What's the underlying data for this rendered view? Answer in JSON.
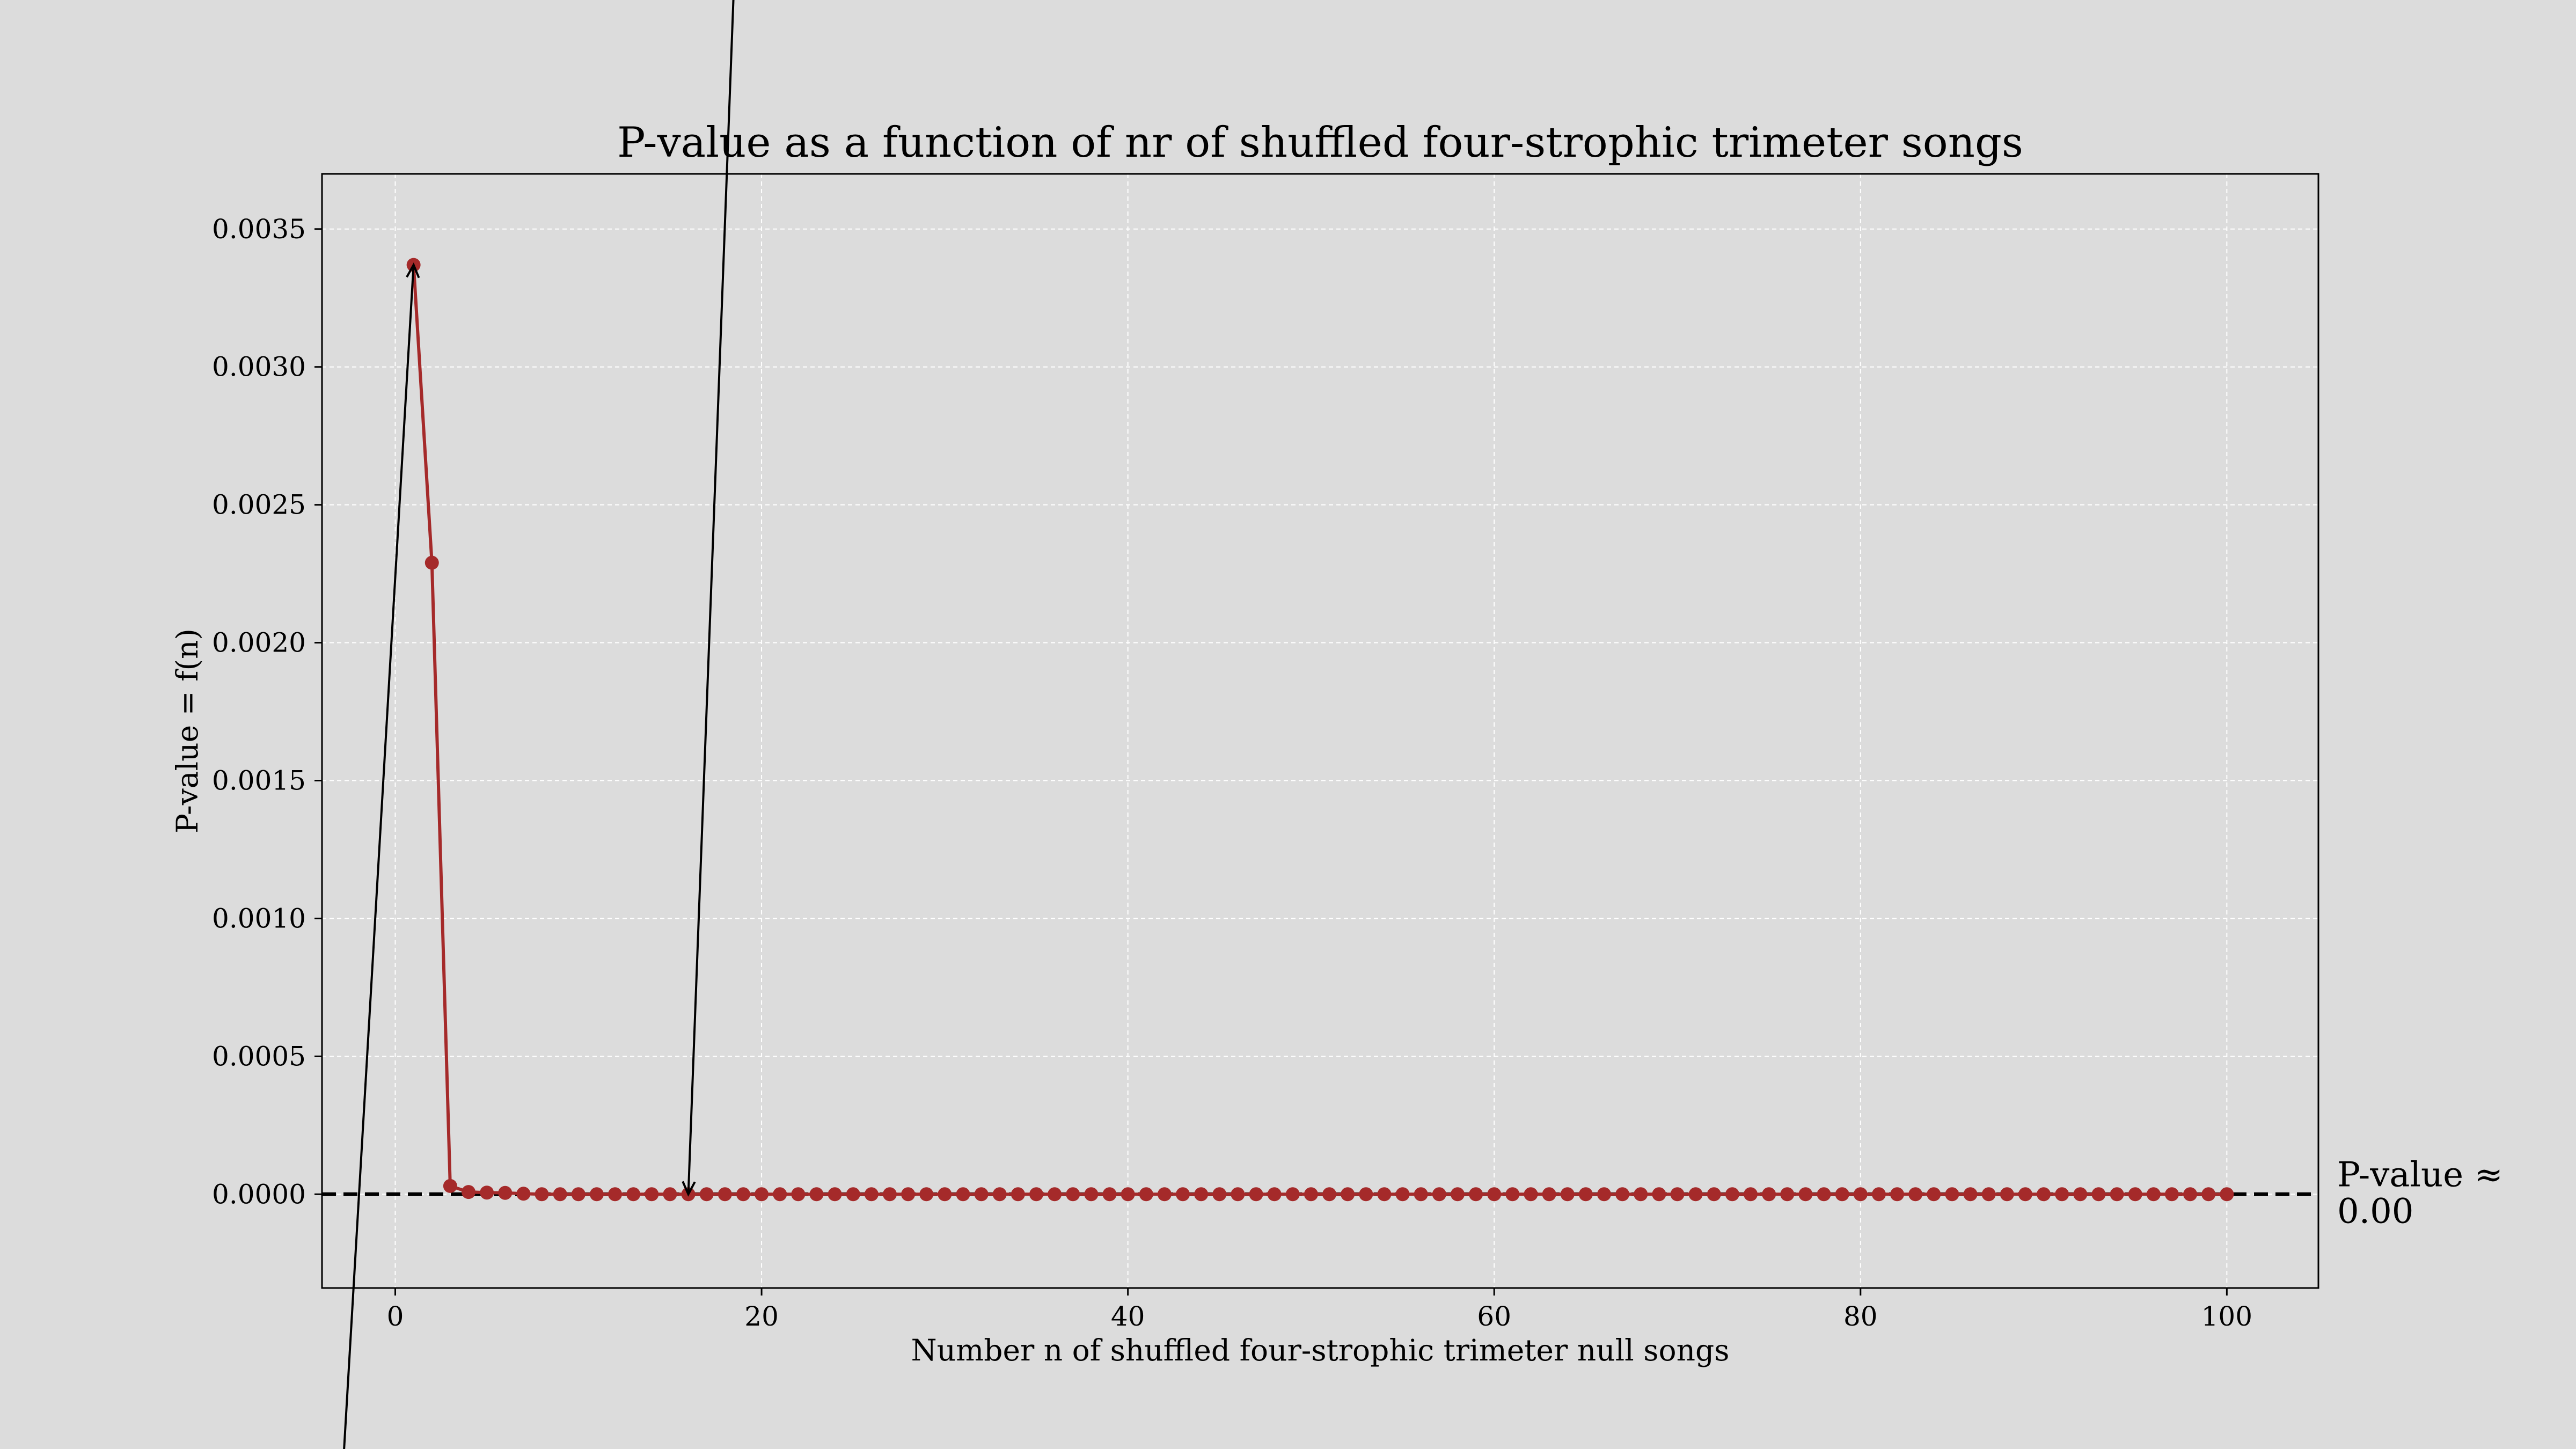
{
  "chart_data": {
    "type": "line",
    "title": "P-value as a function of nr of shuffled four-strophic trimeter songs",
    "xlabel": "Number n of shuffled four-strophic trimeter null songs",
    "ylabel": "P-value = f(n)",
    "xlim": [
      -4,
      105
    ],
    "ylim": [
      -0.00034,
      0.0037
    ],
    "grid": true,
    "x_ticks": [
      0,
      20,
      40,
      60,
      80,
      100
    ],
    "x_tick_labels": [
      "0",
      "20",
      "40",
      "60",
      "80",
      "100"
    ],
    "y_ticks": [
      0.0,
      0.0005,
      0.001,
      0.0015,
      0.002,
      0.0025,
      0.003,
      0.0035
    ],
    "y_tick_labels": [
      "0.0000",
      "0.0005",
      "0.0010",
      "0.0015",
      "0.0020",
      "0.0025",
      "0.0030",
      "0.0035"
    ],
    "series": [
      {
        "x": [
          1,
          2,
          3,
          4,
          5,
          6,
          7,
          8,
          9,
          10,
          11,
          12,
          13,
          14,
          15,
          16,
          17,
          18,
          19,
          20,
          21,
          22,
          23,
          24,
          25,
          26,
          27,
          28,
          29,
          30,
          31,
          32,
          33,
          34,
          35,
          36,
          37,
          38,
          39,
          40,
          41,
          42,
          43,
          44,
          45,
          46,
          47,
          48,
          49,
          50,
          51,
          52,
          53,
          54,
          55,
          56,
          57,
          58,
          59,
          60,
          61,
          62,
          63,
          64,
          65,
          66,
          67,
          68,
          69,
          70,
          71,
          72,
          73,
          74,
          75,
          76,
          77,
          78,
          79,
          80,
          81,
          82,
          83,
          84,
          85,
          86,
          87,
          88,
          89,
          90,
          91,
          92,
          93,
          94,
          95,
          96,
          97,
          98,
          99,
          100
        ],
        "y": [
          0.00337,
          0.00229,
          3e-05,
          8e-06,
          6e-06,
          5e-06,
          2e-06,
          0,
          0,
          0,
          0,
          0,
          0,
          0,
          0,
          0,
          0,
          0,
          0,
          0,
          0,
          0,
          0,
          0,
          0,
          0,
          0,
          0,
          0,
          0,
          0,
          0,
          0,
          0,
          0,
          0,
          0,
          0,
          0,
          0,
          0,
          0,
          0,
          0,
          0,
          0,
          0,
          0,
          0,
          0,
          0,
          0,
          0,
          0,
          0,
          0,
          0,
          0,
          0,
          0,
          0,
          0,
          0,
          0,
          0,
          0,
          0,
          0,
          0,
          0,
          0,
          0,
          0,
          0,
          0,
          0,
          0,
          0,
          0,
          0,
          0,
          0,
          0,
          0,
          0,
          0,
          0,
          0,
          0,
          0,
          0,
          0,
          0,
          0,
          0,
          0,
          0,
          0,
          0,
          0
        ],
        "color": "#a52a2a"
      }
    ],
    "reference_line": {
      "y": 0,
      "style": "dashed",
      "color": "#000000"
    },
    "annotations": [
      {
        "text": "P-value ≈\n0.00",
        "line1": "P-value ≈",
        "line2": "0.00"
      },
      {
        "type": "arrow",
        "target_x": 1,
        "target_y": 0.00337,
        "tail_x": -2.8,
        "tail_y": -0.00093
      },
      {
        "type": "arrow",
        "target_x": 16,
        "target_y": 0.0,
        "tail_x": 18.5,
        "tail_y": 0.0044
      }
    ]
  }
}
